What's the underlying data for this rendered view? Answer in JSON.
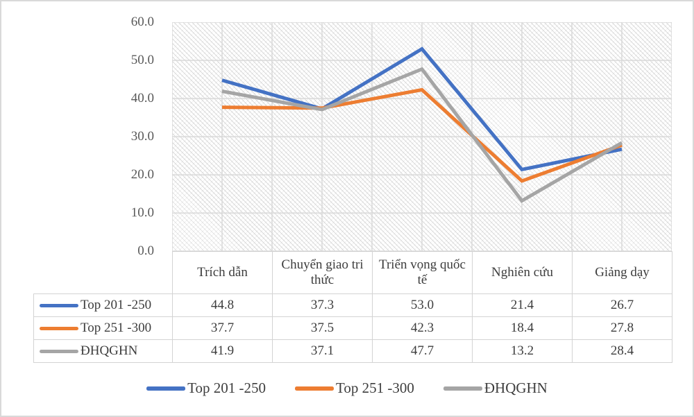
{
  "y_axis": {
    "ticks": [
      "60.0",
      "50.0",
      "40.0",
      "30.0",
      "20.0",
      "10.0",
      "0.0"
    ]
  },
  "table": {
    "column_headers": [
      "Trích dẫn",
      "Chuyển giao tri thức",
      "Triển vọng quốc tế",
      "Nghiên cứu",
      "Giảng dạy"
    ],
    "rows": [
      {
        "label": "Top 201 -250",
        "values": [
          "44.8",
          "37.3",
          "53.0",
          "21.4",
          "26.7"
        ]
      },
      {
        "label": "Top 251 -300",
        "values": [
          "37.7",
          "37.5",
          "42.3",
          "18.4",
          "27.8"
        ]
      },
      {
        "label": "ĐHQGHN",
        "values": [
          "41.9",
          "37.1",
          "47.7",
          "13.2",
          "28.4"
        ]
      }
    ]
  },
  "legend": {
    "position": "bottom",
    "items": [
      {
        "label": "Top 201 -250",
        "color": "#4472C4"
      },
      {
        "label": "Top 251 -300",
        "color": "#ED7D31"
      },
      {
        "label": "ĐHQGHN",
        "color": "#A5A5A5"
      }
    ]
  },
  "colors": {
    "grid": "#D9D9D9",
    "figure_border": "#D9D9D9",
    "table_border": "#D3D3D3",
    "axis_text": "#595959",
    "body_text": "#3D3D3D"
  },
  "chart_data": {
    "type": "line",
    "title": "",
    "xlabel": "",
    "ylabel": "",
    "categories": [
      "Trích dẫn",
      "Chuyển giao tri thức",
      "Triển vọng quốc tế",
      "Nghiên cứu",
      "Giảng dạy"
    ],
    "series": [
      {
        "name": "Top 201 -250",
        "color": "#4472C4",
        "values": [
          44.8,
          37.3,
          53.0,
          21.4,
          26.7
        ]
      },
      {
        "name": "Top 251 -300",
        "color": "#ED7D31",
        "values": [
          37.7,
          37.5,
          42.3,
          18.4,
          27.8
        ]
      },
      {
        "name": "ĐHQGHN",
        "color": "#A5A5A5",
        "values": [
          41.9,
          37.1,
          47.7,
          13.2,
          28.4
        ]
      }
    ],
    "ylim": [
      0,
      60
    ],
    "ytick_step": 10,
    "grid": "horizontal every 10 units, vertical every half category",
    "plot_background_pattern": "light diagonal hatch",
    "legend_position": "bottom",
    "line_width": 5
  }
}
